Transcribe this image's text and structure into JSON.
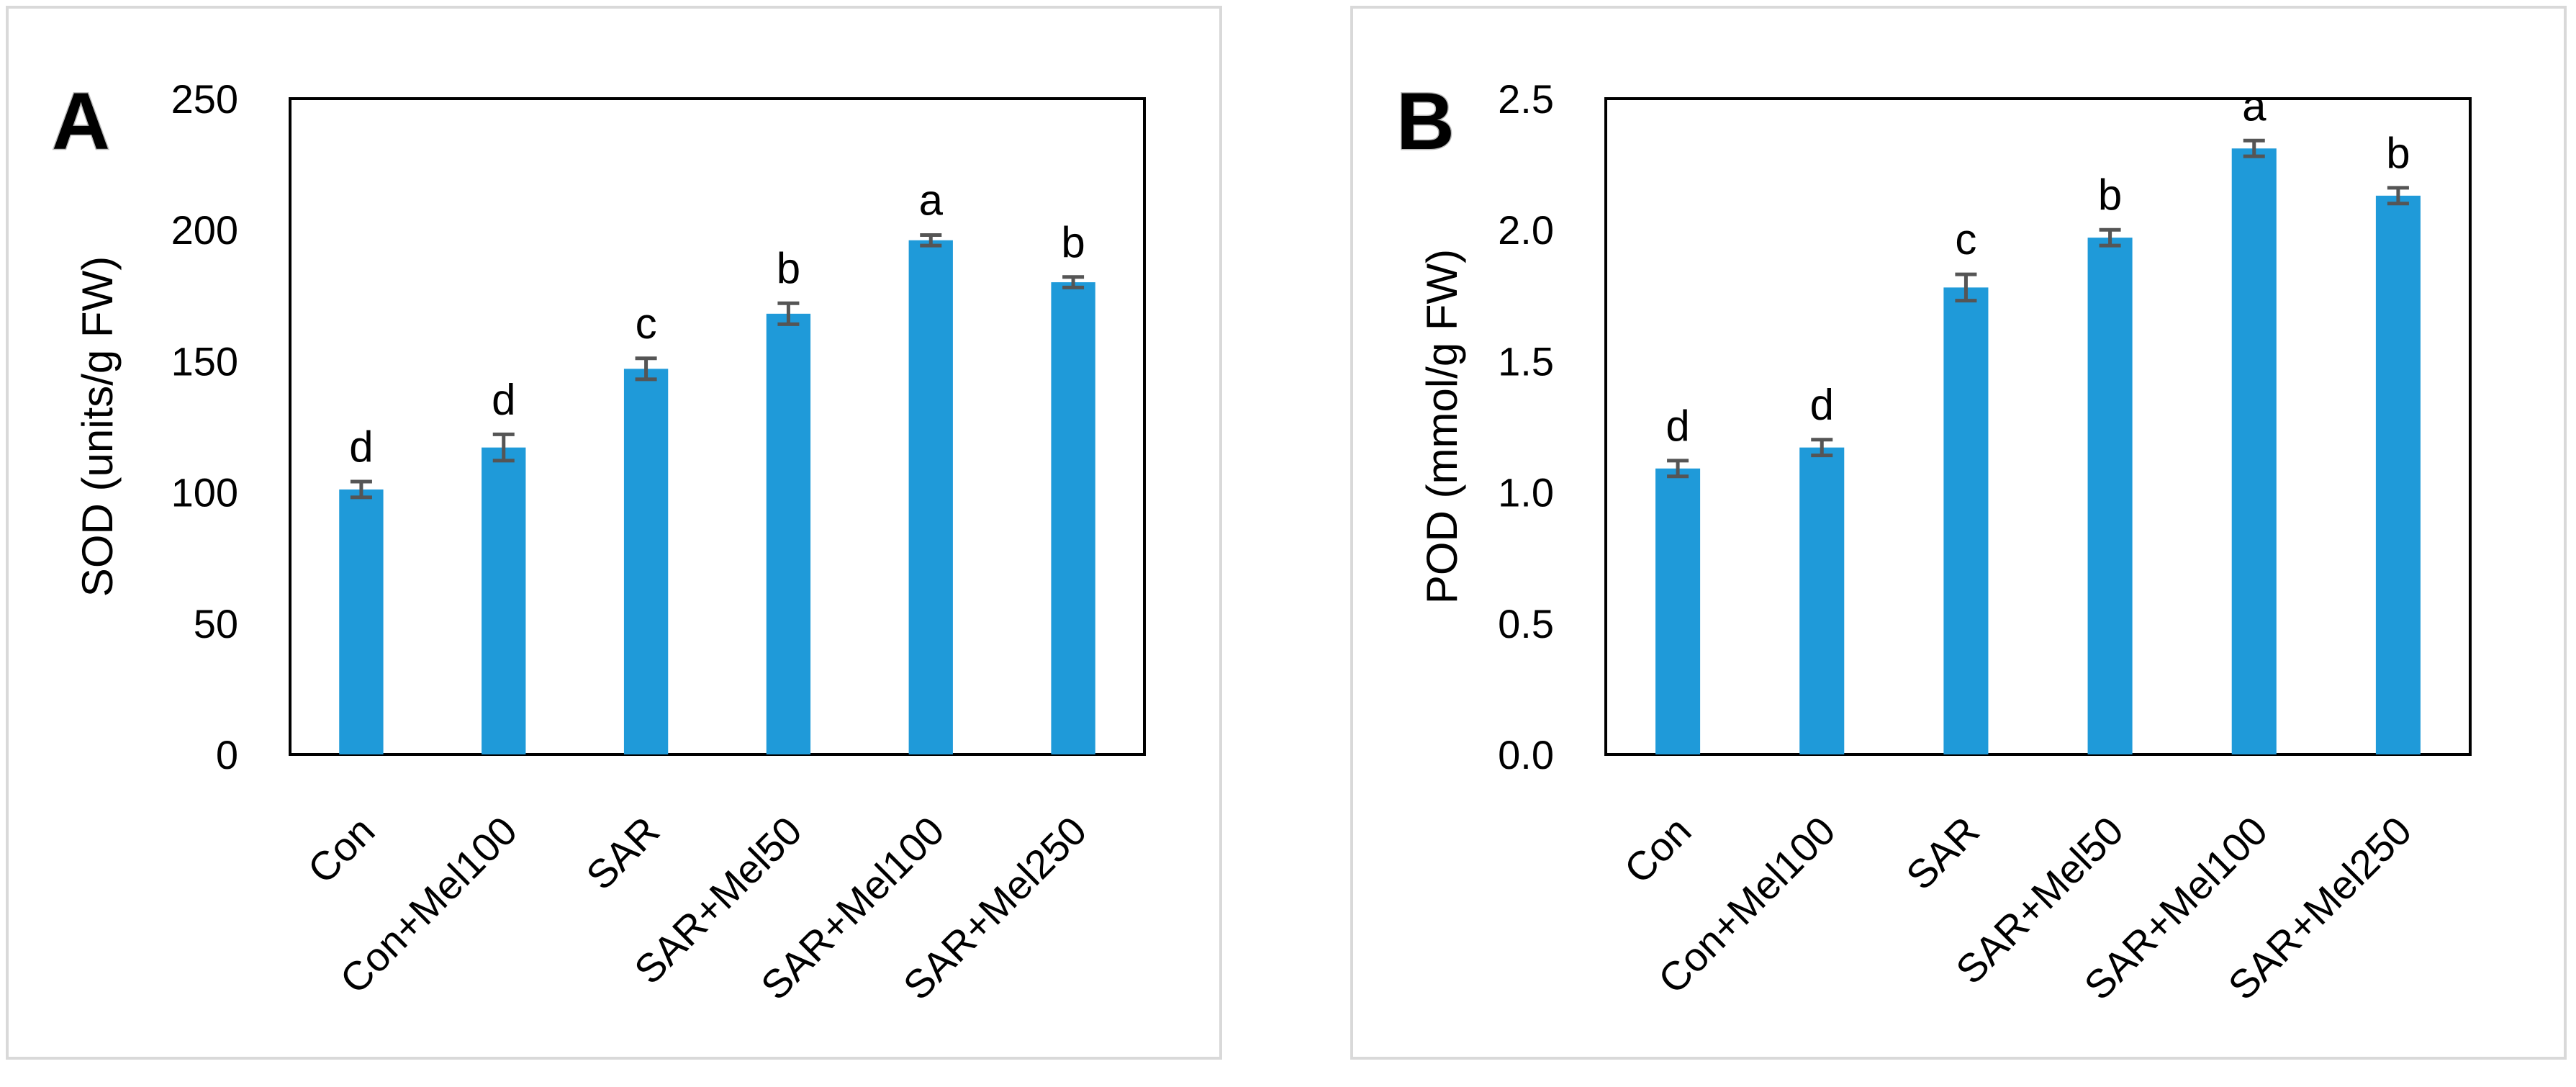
{
  "figure": {
    "panels": [
      "A",
      "B"
    ]
  },
  "colors": {
    "bar": "#1f9ad9",
    "error": "#555555",
    "frame": "#d9d9d9",
    "axis": "#000000"
  },
  "chart_data": [
    {
      "type": "bar",
      "panel_label": "A",
      "title": "",
      "xlabel": "",
      "ylabel": "SOD (units/g FW)",
      "ylim": [
        0,
        250
      ],
      "yticks": [
        0,
        50,
        100,
        150,
        200,
        250
      ],
      "ytick_labels": [
        "0",
        "50",
        "100",
        "150",
        "200",
        "250"
      ],
      "categories": [
        "Con",
        "Con+Mel100",
        "SAR",
        "SAR+Mel50",
        "SAR+Mel100",
        "SAR+Mel250"
      ],
      "values": [
        101,
        117,
        147,
        168,
        196,
        180
      ],
      "errors": [
        3,
        5,
        4,
        4,
        2,
        2
      ],
      "letters": [
        "d",
        "d",
        "c",
        "b",
        "a",
        "b"
      ],
      "grid": false,
      "legend": "none"
    },
    {
      "type": "bar",
      "panel_label": "B",
      "title": "",
      "xlabel": "",
      "ylabel": "POD (mmol/g FW)",
      "ylim": [
        0,
        2.5
      ],
      "yticks": [
        0,
        0.5,
        1.0,
        1.5,
        2.0,
        2.5
      ],
      "ytick_labels": [
        "0.0",
        "0.5",
        "1.0",
        "1.5",
        "2.0",
        "2.5"
      ],
      "categories": [
        "Con",
        "Con+Mel100",
        "SAR",
        "SAR+Mel50",
        "SAR+Mel100",
        "SAR+Mel250"
      ],
      "values": [
        1.09,
        1.17,
        1.78,
        1.97,
        2.31,
        2.13
      ],
      "errors": [
        0.03,
        0.03,
        0.05,
        0.03,
        0.03,
        0.03
      ],
      "letters": [
        "d",
        "d",
        "c",
        "b",
        "a",
        "b"
      ],
      "grid": false,
      "legend": "none"
    }
  ]
}
